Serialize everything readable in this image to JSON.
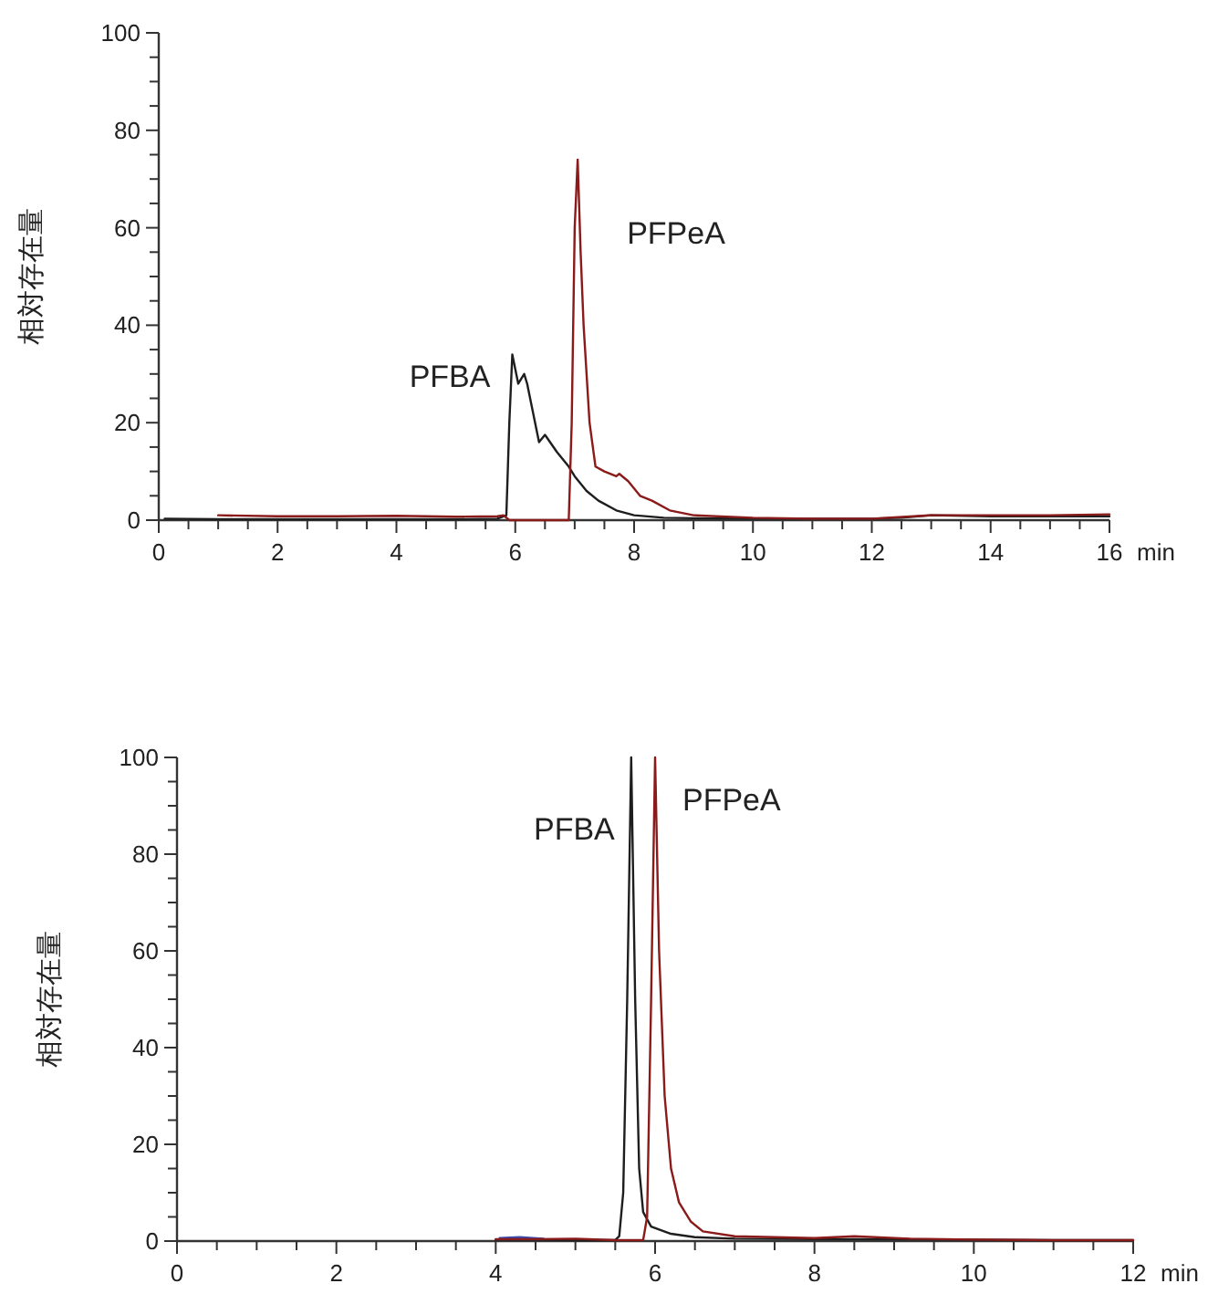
{
  "chart_data": [
    {
      "type": "line",
      "ylabel": "相対存在量",
      "xlabel": "min",
      "xlim": [
        0,
        16
      ],
      "ylim": [
        0,
        100
      ],
      "grid": false,
      "marker": "none",
      "line_style": "solid",
      "xticks": [
        0,
        {
          "value": 0.5,
          "label": null
        },
        2,
        {
          "value": 1,
          "label": null
        },
        {
          "value": 1.5,
          "label": null
        },
        {
          "value": 2.5,
          "label": null
        },
        {
          "value": 3,
          "label": null
        },
        {
          "value": 3.5,
          "label": null
        },
        4,
        {
          "value": 4.5,
          "label": null
        },
        {
          "value": 5,
          "label": null
        },
        {
          "value": 5.5,
          "label": null
        },
        6,
        {
          "value": 6.5,
          "label": null
        },
        {
          "value": 7,
          "label": null
        },
        {
          "value": 7.5,
          "label": null
        },
        8,
        {
          "value": 8.5,
          "label": null
        },
        {
          "value": 9,
          "label": null
        },
        {
          "value": 9.5,
          "label": null
        },
        10,
        {
          "value": 10.5,
          "label": null
        },
        {
          "value": 11,
          "label": null
        },
        {
          "value": 11.5,
          "label": null
        },
        12,
        {
          "value": 12.5,
          "label": null
        },
        {
          "value": 13,
          "label": null
        },
        {
          "value": 13.5,
          "label": null
        },
        14,
        {
          "value": 14.5,
          "label": null
        },
        {
          "value": 15,
          "label": null
        },
        {
          "value": 15.5,
          "label": null
        },
        16
      ],
      "yticks": [
        0,
        {
          "value": 5,
          "label": null
        },
        {
          "value": 10,
          "label": null
        },
        {
          "value": 15,
          "label": null
        },
        20,
        {
          "value": 25,
          "label": null
        },
        {
          "value": 30,
          "label": null
        },
        {
          "value": 35,
          "label": null
        },
        40,
        {
          "value": 45,
          "label": null
        },
        {
          "value": 50,
          "label": null
        },
        {
          "value": 55,
          "label": null
        },
        60,
        {
          "value": 65,
          "label": null
        },
        {
          "value": 70,
          "label": null
        },
        {
          "value": 75,
          "label": null
        },
        80,
        {
          "value": 85,
          "label": null
        },
        {
          "value": 90,
          "label": null
        },
        {
          "value": 95,
          "label": null
        },
        100
      ],
      "series": [
        {
          "name": "PFBA",
          "color": "#1e1e1e",
          "x": [
            0.1,
            1,
            2,
            3,
            4,
            5,
            5.7,
            5.85,
            5.9,
            5.95,
            6.05,
            6.15,
            6.2,
            6.3,
            6.4,
            6.5,
            6.7,
            6.9,
            7.0,
            7.2,
            7.4,
            7.7,
            8.0,
            8.5,
            9,
            10,
            11,
            12,
            12.5,
            13,
            14,
            15,
            16
          ],
          "values": [
            0.3,
            0.2,
            0.2,
            0.2,
            0.2,
            0.2,
            0.3,
            1,
            20,
            34,
            28,
            30,
            28,
            22,
            16,
            17.5,
            14,
            11,
            9,
            6,
            4,
            2,
            1,
            0.5,
            0.4,
            0.3,
            0.3,
            0.3,
            0.5,
            1,
            0.8,
            0.8,
            0.8
          ]
        },
        {
          "name": "PFPeA",
          "color": "#8b1a1a",
          "x": [
            1,
            2,
            3,
            4,
            5,
            5.7,
            5.8,
            5.9,
            6.5,
            6.9,
            6.95,
            7.0,
            7.05,
            7.1,
            7.15,
            7.25,
            7.35,
            7.5,
            7.7,
            7.75,
            7.9,
            8.1,
            8.3,
            8.6,
            9,
            10,
            11,
            12,
            13,
            14,
            15,
            16
          ],
          "values": [
            1,
            0.8,
            0.8,
            0.9,
            0.7,
            0.8,
            1,
            0,
            0,
            0,
            20,
            60,
            74,
            55,
            40,
            20,
            11,
            10,
            9,
            9.5,
            8,
            5,
            4,
            2,
            1,
            0.5,
            0.3,
            0.3,
            1,
            1,
            1,
            1.2
          ]
        }
      ]
    },
    {
      "type": "line",
      "ylabel": "相対存在量",
      "xlabel": "min",
      "xlim": [
        0,
        12
      ],
      "ylim": [
        0,
        100
      ],
      "grid": false,
      "marker": "none",
      "line_style": "solid",
      "xticks": [
        0,
        {
          "value": 0.5,
          "label": null
        },
        {
          "value": 1,
          "label": null
        },
        {
          "value": 1.5,
          "label": null
        },
        2,
        {
          "value": 2.5,
          "label": null
        },
        {
          "value": 3,
          "label": null
        },
        {
          "value": 3.5,
          "label": null
        },
        4,
        {
          "value": 4.5,
          "label": null
        },
        {
          "value": 5,
          "label": null
        },
        {
          "value": 5.5,
          "label": null
        },
        6,
        {
          "value": 6.5,
          "label": null
        },
        {
          "value": 7,
          "label": null
        },
        {
          "value": 7.5,
          "label": null
        },
        8,
        {
          "value": 8.5,
          "label": null
        },
        {
          "value": 9,
          "label": null
        },
        {
          "value": 9.5,
          "label": null
        },
        10,
        {
          "value": 10.5,
          "label": null
        },
        {
          "value": 11,
          "label": null
        },
        {
          "value": 11.5,
          "label": null
        },
        12
      ],
      "yticks": [
        0,
        {
          "value": 5,
          "label": null
        },
        {
          "value": 10,
          "label": null
        },
        {
          "value": 15,
          "label": null
        },
        20,
        {
          "value": 25,
          "label": null
        },
        {
          "value": 30,
          "label": null
        },
        {
          "value": 35,
          "label": null
        },
        40,
        {
          "value": 45,
          "label": null
        },
        {
          "value": 50,
          "label": null
        },
        {
          "value": 55,
          "label": null
        },
        60,
        {
          "value": 65,
          "label": null
        },
        {
          "value": 70,
          "label": null
        },
        {
          "value": 75,
          "label": null
        },
        80,
        {
          "value": 85,
          "label": null
        },
        {
          "value": 90,
          "label": null
        },
        {
          "value": 95,
          "label": null
        },
        100
      ],
      "series": [
        {
          "color": "#3a4aa8",
          "x": [
            4.05,
            4.3,
            4.6
          ],
          "values": [
            0.6,
            0.8,
            0.5
          ]
        },
        {
          "name": "PFBA",
          "color": "#1e1e1e",
          "x": [
            4.0,
            4.5,
            5.0,
            5.5,
            5.55,
            5.6,
            5.65,
            5.7,
            5.75,
            5.8,
            5.85,
            5.95,
            6.2,
            6.5,
            7,
            8,
            9,
            10,
            11,
            12
          ],
          "values": [
            0.3,
            0.3,
            0.2,
            0.2,
            1,
            10,
            50,
            100,
            50,
            15,
            6,
            3,
            1.5,
            0.8,
            0.5,
            0.4,
            0.4,
            0.3,
            0.2,
            0.2
          ]
        },
        {
          "name": "PFPeA",
          "color": "#8b1a1a",
          "x": [
            4.0,
            4.5,
            5.0,
            5.5,
            5.85,
            5.9,
            5.95,
            6.0,
            6.05,
            6.12,
            6.2,
            6.3,
            6.45,
            6.6,
            7,
            8,
            8.5,
            9.2,
            10,
            11,
            12
          ],
          "values": [
            0.4,
            0.4,
            0.5,
            0.2,
            0.2,
            5,
            50,
            100,
            60,
            30,
            15,
            8,
            4,
            2,
            1,
            0.6,
            1,
            0.5,
            0.3,
            0.2,
            0.2
          ]
        }
      ]
    }
  ]
}
